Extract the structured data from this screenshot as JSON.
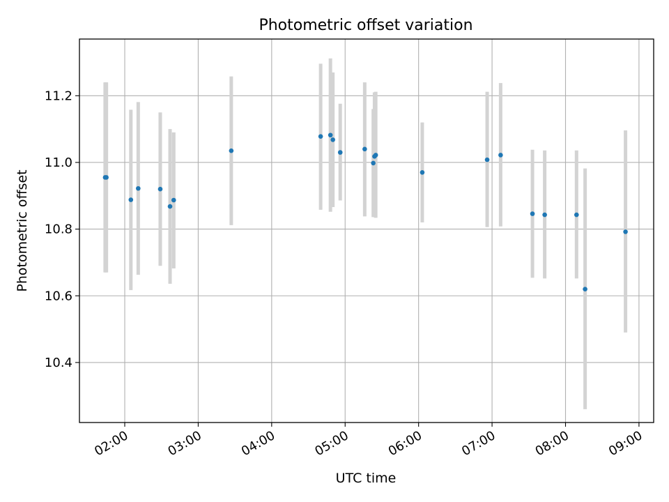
{
  "chart_data": {
    "type": "scatter",
    "title": "Photometric offset variation",
    "xlabel": "UTC time",
    "ylabel": "Photometric offset",
    "xlim": [
      "01:23",
      "09:12"
    ],
    "ylim": [
      10.22,
      11.37
    ],
    "x_ticks": [
      "02:00",
      "03:00",
      "04:00",
      "05:00",
      "06:00",
      "07:00",
      "08:00",
      "09:00"
    ],
    "y_ticks": [
      "10.4",
      "10.6",
      "10.8",
      "11.0",
      "11.2"
    ],
    "grid": true,
    "colors": {
      "points": "#1f77b4",
      "errorbars": "#d3d3d3",
      "grid": "#b0b0b0"
    },
    "points": [
      {
        "x": "01:44",
        "y": 10.955,
        "err_low": 10.67,
        "err_high": 11.24
      },
      {
        "x": "01:45",
        "y": 10.955,
        "err_low": 10.67,
        "err_high": 11.24
      },
      {
        "x": "02:05",
        "y": 10.888,
        "err_low": 10.617,
        "err_high": 11.158
      },
      {
        "x": "02:11",
        "y": 10.922,
        "err_low": 10.663,
        "err_high": 11.181
      },
      {
        "x": "02:29",
        "y": 10.92,
        "err_low": 10.69,
        "err_high": 11.15
      },
      {
        "x": "02:37",
        "y": 10.868,
        "err_low": 10.636,
        "err_high": 11.1
      },
      {
        "x": "02:40",
        "y": 10.887,
        "err_low": 10.682,
        "err_high": 11.09
      },
      {
        "x": "03:27",
        "y": 11.035,
        "err_low": 10.812,
        "err_high": 11.258
      },
      {
        "x": "04:40",
        "y": 11.078,
        "err_low": 10.858,
        "err_high": 11.296
      },
      {
        "x": "04:48",
        "y": 11.082,
        "err_low": 10.852,
        "err_high": 11.312
      },
      {
        "x": "04:50",
        "y": 11.068,
        "err_low": 10.866,
        "err_high": 11.27
      },
      {
        "x": "04:56",
        "y": 11.03,
        "err_low": 10.886,
        "err_high": 11.176
      },
      {
        "x": "05:16",
        "y": 11.04,
        "err_low": 10.838,
        "err_high": 11.24
      },
      {
        "x": "05:23",
        "y": 10.998,
        "err_low": 10.836,
        "err_high": 11.16
      },
      {
        "x": "05:24",
        "y": 11.018,
        "err_low": 10.836,
        "err_high": 11.21
      },
      {
        "x": "05:25",
        "y": 11.022,
        "err_low": 10.834,
        "err_high": 11.212
      },
      {
        "x": "06:03",
        "y": 10.97,
        "err_low": 10.82,
        "err_high": 11.12
      },
      {
        "x": "06:56",
        "y": 11.008,
        "err_low": 10.806,
        "err_high": 11.212
      },
      {
        "x": "07:07",
        "y": 11.022,
        "err_low": 10.808,
        "err_high": 11.238
      },
      {
        "x": "07:33",
        "y": 10.846,
        "err_low": 10.654,
        "err_high": 11.038
      },
      {
        "x": "07:43",
        "y": 10.843,
        "err_low": 10.652,
        "err_high": 11.036
      },
      {
        "x": "08:09",
        "y": 10.843,
        "err_low": 10.652,
        "err_high": 11.036
      },
      {
        "x": "08:16",
        "y": 10.62,
        "err_low": 10.26,
        "err_high": 10.982
      },
      {
        "x": "08:49",
        "y": 10.792,
        "err_low": 10.49,
        "err_high": 11.096
      }
    ]
  }
}
